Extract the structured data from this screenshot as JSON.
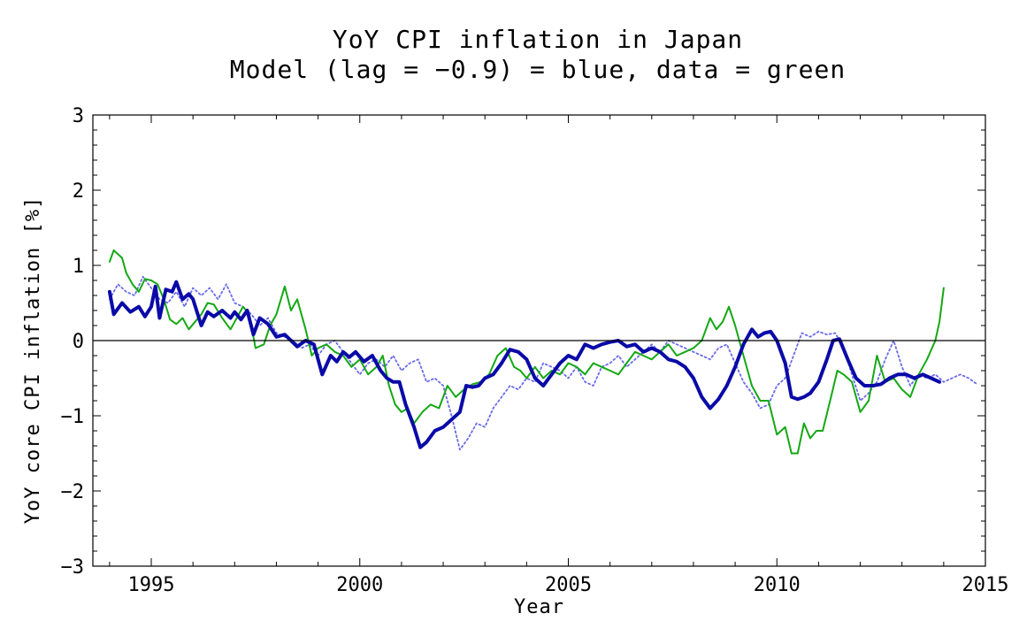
{
  "chart_data": {
    "type": "line",
    "title": "YoY CPI inflation in Japan",
    "subtitle": "Model (lag = −0.9) = blue, data = green",
    "xlabel": "Year",
    "ylabel": "YoY core CPI inflation [%]",
    "xlim": [
      1993.6,
      2015
    ],
    "ylim": [
      -3,
      3
    ],
    "x_ticks": [
      1995,
      2000,
      2005,
      2010,
      2015
    ],
    "y_ticks": [
      -3,
      -2,
      -1,
      0,
      1,
      2,
      3
    ],
    "y_tick_labels": [
      "−3",
      "−2",
      "−1",
      "0",
      "1",
      "2",
      "3"
    ],
    "zero_line": true,
    "grid": false,
    "colors": {
      "blue": "#0a0aa8",
      "green": "#14a814",
      "dotted": "#6b6bea",
      "axis": "#000000"
    },
    "series": [
      {
        "style": "solid-thick",
        "color": "#0a0aa8",
        "x": [
          1994.0,
          1994.1,
          1994.3,
          1994.5,
          1994.7,
          1994.85,
          1995.0,
          1995.1,
          1995.2,
          1995.35,
          1995.5,
          1995.6,
          1995.75,
          1995.9,
          1996.0,
          1996.2,
          1996.35,
          1996.5,
          1996.7,
          1996.9,
          1997.0,
          1997.15,
          1997.3,
          1997.45,
          1997.6,
          1997.8,
          1998.0,
          1998.2,
          1998.35,
          1998.5,
          1998.7,
          1998.9,
          1999.1,
          1999.3,
          1999.45,
          1999.6,
          1999.75,
          1999.9,
          2000.1,
          2000.3,
          2000.5,
          2000.65,
          2000.8,
          2000.95,
          2001.1,
          2001.3,
          2001.45,
          2001.6,
          2001.8,
          2002.0,
          2002.2,
          2002.4,
          2002.55,
          2002.7,
          2002.85,
          2003.0,
          2003.2,
          2003.4,
          2003.6,
          2003.8,
          2004.0,
          2004.2,
          2004.4,
          2004.6,
          2004.8,
          2005.0,
          2005.2,
          2005.4,
          2005.6,
          2005.8,
          2006.0,
          2006.2,
          2006.4,
          2006.6,
          2006.8,
          2007.0,
          2007.2,
          2007.4,
          2007.6,
          2007.8,
          2008.0,
          2008.2,
          2008.4,
          2008.6,
          2008.8,
          2009.0,
          2009.2,
          2009.4,
          2009.55,
          2009.7,
          2009.85,
          2010.0,
          2010.2,
          2010.35,
          2010.5,
          2010.65,
          2010.8,
          2011.0,
          2011.2,
          2011.35,
          2011.5,
          2011.7,
          2011.9,
          2012.1,
          2012.3,
          2012.5,
          2012.7,
          2012.9,
          2013.1,
          2013.3,
          2013.5,
          2013.7,
          2013.9
        ],
        "y": [
          0.65,
          0.35,
          0.5,
          0.38,
          0.45,
          0.32,
          0.45,
          0.72,
          0.3,
          0.68,
          0.65,
          0.78,
          0.55,
          0.62,
          0.55,
          0.2,
          0.38,
          0.32,
          0.4,
          0.3,
          0.38,
          0.28,
          0.4,
          0.08,
          0.3,
          0.22,
          0.05,
          0.08,
          0.0,
          -0.08,
          0.0,
          -0.05,
          -0.45,
          -0.2,
          -0.28,
          -0.15,
          -0.22,
          -0.15,
          -0.28,
          -0.2,
          -0.4,
          -0.5,
          -0.55,
          -0.55,
          -0.85,
          -1.15,
          -1.42,
          -1.35,
          -1.2,
          -1.15,
          -1.05,
          -0.95,
          -0.6,
          -0.62,
          -0.6,
          -0.5,
          -0.45,
          -0.3,
          -0.12,
          -0.15,
          -0.25,
          -0.5,
          -0.6,
          -0.45,
          -0.3,
          -0.2,
          -0.25,
          -0.05,
          -0.1,
          -0.05,
          -0.02,
          0.0,
          -0.08,
          -0.05,
          -0.15,
          -0.1,
          -0.15,
          -0.25,
          -0.28,
          -0.35,
          -0.5,
          -0.75,
          -0.9,
          -0.78,
          -0.6,
          -0.35,
          -0.05,
          0.15,
          0.05,
          0.1,
          0.12,
          0.0,
          -0.3,
          -0.75,
          -0.78,
          -0.75,
          -0.7,
          -0.55,
          -0.25,
          0.0,
          0.02,
          -0.25,
          -0.5,
          -0.6,
          -0.6,
          -0.58,
          -0.5,
          -0.45,
          -0.45,
          -0.5,
          -0.45,
          -0.5,
          -0.55
        ]
      },
      {
        "style": "solid",
        "color": "#14a814",
        "x": [
          1994.0,
          1994.1,
          1994.3,
          1994.4,
          1994.55,
          1994.7,
          1994.85,
          1995.0,
          1995.15,
          1995.3,
          1995.45,
          1995.6,
          1995.75,
          1995.9,
          1996.05,
          1996.2,
          1996.35,
          1996.5,
          1996.7,
          1996.9,
          1997.0,
          1997.2,
          1997.35,
          1997.5,
          1997.7,
          1997.85,
          1998.0,
          1998.2,
          1998.35,
          1998.5,
          1998.7,
          1998.85,
          1999.0,
          1999.2,
          1999.4,
          1999.6,
          1999.8,
          2000.0,
          2000.2,
          2000.4,
          2000.55,
          2000.7,
          2000.85,
          2001.0,
          2001.15,
          2001.3,
          2001.5,
          2001.7,
          2001.9,
          2002.1,
          2002.3,
          2002.5,
          2002.7,
          2002.9,
          2003.1,
          2003.3,
          2003.5,
          2003.7,
          2003.85,
          2004.0,
          2004.2,
          2004.4,
          2004.6,
          2004.8,
          2005.0,
          2005.2,
          2005.4,
          2005.6,
          2005.8,
          2006.0,
          2006.2,
          2006.4,
          2006.6,
          2006.8,
          2007.0,
          2007.2,
          2007.4,
          2007.6,
          2007.8,
          2008.0,
          2008.2,
          2008.4,
          2008.55,
          2008.7,
          2008.85,
          2009.0,
          2009.2,
          2009.4,
          2009.6,
          2009.8,
          2010.0,
          2010.2,
          2010.35,
          2010.5,
          2010.65,
          2010.8,
          2010.95,
          2011.1,
          2011.3,
          2011.45,
          2011.6,
          2011.8,
          2012.0,
          2012.2,
          2012.4,
          2012.6,
          2012.8,
          2013.0,
          2013.2,
          2013.4,
          2013.6,
          2013.8,
          2013.9,
          2014.0
        ],
        "y": [
          1.05,
          1.2,
          1.1,
          0.9,
          0.75,
          0.65,
          0.82,
          0.8,
          0.75,
          0.55,
          0.28,
          0.22,
          0.3,
          0.15,
          0.25,
          0.35,
          0.5,
          0.48,
          0.3,
          0.15,
          0.25,
          0.45,
          0.35,
          -0.1,
          -0.05,
          0.2,
          0.35,
          0.72,
          0.4,
          0.55,
          0.15,
          -0.2,
          -0.1,
          -0.05,
          -0.15,
          -0.2,
          -0.35,
          -0.25,
          -0.45,
          -0.35,
          -0.2,
          -0.6,
          -0.85,
          -0.95,
          -0.9,
          -1.1,
          -0.95,
          -0.85,
          -0.9,
          -0.6,
          -0.75,
          -0.65,
          -0.58,
          -0.55,
          -0.45,
          -0.2,
          -0.1,
          -0.35,
          -0.4,
          -0.5,
          -0.35,
          -0.5,
          -0.4,
          -0.45,
          -0.3,
          -0.35,
          -0.45,
          -0.3,
          -0.35,
          -0.4,
          -0.45,
          -0.3,
          -0.15,
          -0.2,
          -0.25,
          -0.15,
          -0.05,
          -0.2,
          -0.15,
          -0.1,
          0.0,
          0.3,
          0.15,
          0.25,
          0.45,
          0.2,
          -0.2,
          -0.6,
          -0.8,
          -0.8,
          -1.25,
          -1.15,
          -1.5,
          -1.5,
          -1.1,
          -1.3,
          -1.2,
          -1.2,
          -0.75,
          -0.4,
          -0.45,
          -0.55,
          -0.95,
          -0.8,
          -0.2,
          -0.55,
          -0.5,
          -0.65,
          -0.75,
          -0.45,
          -0.25,
          0.0,
          0.25,
          0.7
        ]
      },
      {
        "style": "dotted",
        "color": "#6b6bea",
        "x": [
          1994.0,
          1994.2,
          1994.4,
          1994.6,
          1994.8,
          1995.0,
          1995.2,
          1995.4,
          1995.6,
          1995.8,
          1996.0,
          1996.2,
          1996.4,
          1996.6,
          1996.8,
          1997.0,
          1997.2,
          1997.4,
          1997.6,
          1997.8,
          1998.0,
          1998.2,
          1998.4,
          1998.6,
          1998.8,
          1999.0,
          1999.2,
          1999.4,
          1999.6,
          1999.8,
          2000.0,
          2000.2,
          2000.4,
          2000.6,
          2000.8,
          2001.0,
          2001.2,
          2001.4,
          2001.6,
          2001.8,
          2002.0,
          2002.2,
          2002.4,
          2002.6,
          2002.8,
          2003.0,
          2003.2,
          2003.4,
          2003.6,
          2003.8,
          2004.0,
          2004.2,
          2004.4,
          2004.6,
          2004.8,
          2005.0,
          2005.2,
          2005.4,
          2005.6,
          2005.8,
          2006.0,
          2006.2,
          2006.4,
          2006.6,
          2006.8,
          2007.0,
          2007.2,
          2007.4,
          2007.6,
          2007.8,
          2008.0,
          2008.2,
          2008.4,
          2008.6,
          2008.8,
          2009.0,
          2009.2,
          2009.4,
          2009.6,
          2009.8,
          2010.0,
          2010.2,
          2010.4,
          2010.6,
          2010.8,
          2011.0,
          2011.2,
          2011.4,
          2011.6,
          2011.8,
          2012.0,
          2012.2,
          2012.4,
          2012.6,
          2012.8,
          2013.0,
          2013.2,
          2013.4,
          2013.6,
          2013.8,
          2014.0,
          2014.2,
          2014.4,
          2014.6,
          2014.8
        ],
        "y": [
          0.55,
          0.75,
          0.65,
          0.6,
          0.85,
          0.7,
          0.55,
          0.5,
          0.65,
          0.45,
          0.7,
          0.6,
          0.7,
          0.55,
          0.75,
          0.5,
          0.45,
          0.35,
          0.2,
          0.3,
          0.1,
          0.05,
          0.0,
          -0.1,
          -0.05,
          -0.2,
          -0.05,
          0.0,
          -0.15,
          -0.3,
          -0.45,
          -0.3,
          -0.25,
          -0.35,
          -0.2,
          -0.4,
          -0.3,
          -0.25,
          -0.55,
          -0.5,
          -0.6,
          -1.0,
          -1.45,
          -1.3,
          -1.1,
          -1.15,
          -0.9,
          -0.75,
          -0.6,
          -0.65,
          -0.5,
          -0.55,
          -0.3,
          -0.35,
          -0.4,
          -0.5,
          -0.35,
          -0.55,
          -0.6,
          -0.35,
          -0.3,
          -0.2,
          -0.35,
          -0.25,
          -0.15,
          -0.05,
          -0.15,
          0.0,
          -0.05,
          -0.1,
          -0.15,
          -0.2,
          -0.25,
          -0.1,
          -0.05,
          -0.3,
          -0.55,
          -0.7,
          -0.9,
          -0.85,
          -0.6,
          -0.5,
          -0.2,
          0.1,
          0.05,
          0.12,
          0.08,
          0.1,
          -0.1,
          -0.45,
          -0.8,
          -0.7,
          -0.55,
          -0.25,
          0.0,
          -0.35,
          -0.6,
          -0.45,
          -0.5,
          -0.45,
          -0.55,
          -0.5,
          -0.45,
          -0.5,
          -0.58
        ]
      }
    ]
  }
}
